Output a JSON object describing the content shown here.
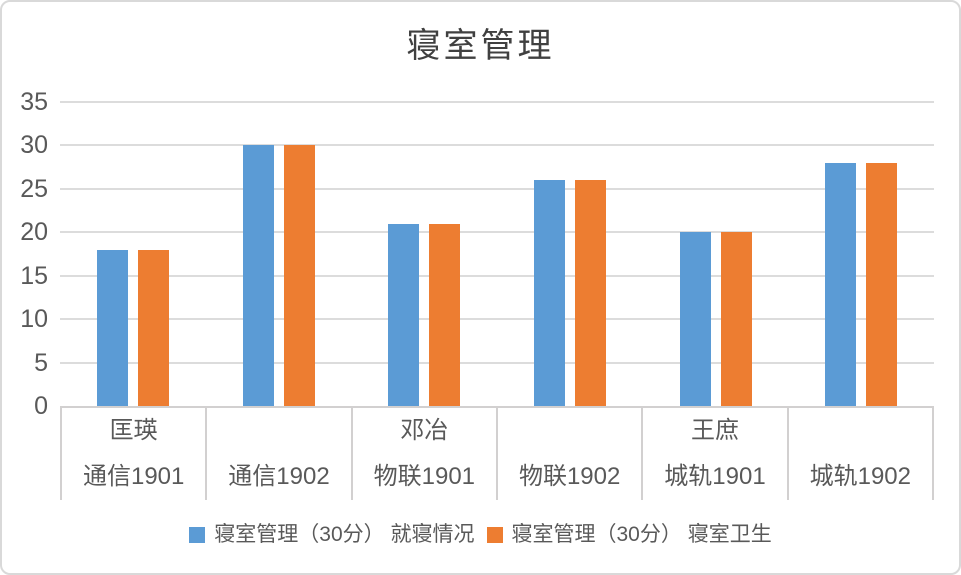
{
  "colors": {
    "series1": "#5B9BD5",
    "series2": "#ED7D31",
    "grid": "#DCDCDC",
    "axis": "#D2D0D0",
    "frame_border": "#D9D9D9",
    "text": "#595959",
    "title_text": "#404040",
    "background": "#FFFFFF"
  },
  "chart_data": {
    "type": "bar",
    "title": "寝室管理",
    "categories": [
      "通信1901",
      "通信1902",
      "物联1901",
      "物联1902",
      "城轨1901",
      "城轨1902"
    ],
    "group_labels": [
      "匡瑛",
      "",
      "邓冶",
      "",
      "王庶",
      ""
    ],
    "series": [
      {
        "name": "寝室管理（30分） 就寝情况",
        "color": "#5B9BD5",
        "values": [
          18,
          30,
          21,
          26,
          20,
          28
        ]
      },
      {
        "name": "寝室管理（30分） 寝室卫生",
        "color": "#ED7D31",
        "values": [
          18,
          30,
          21,
          26,
          20,
          28
        ]
      }
    ],
    "xlabel": "",
    "ylabel": "",
    "ylim": [
      0,
      35
    ],
    "yticks": [
      0,
      5,
      10,
      15,
      20,
      25,
      30,
      35
    ],
    "grid": true,
    "legend_position": "bottom"
  }
}
